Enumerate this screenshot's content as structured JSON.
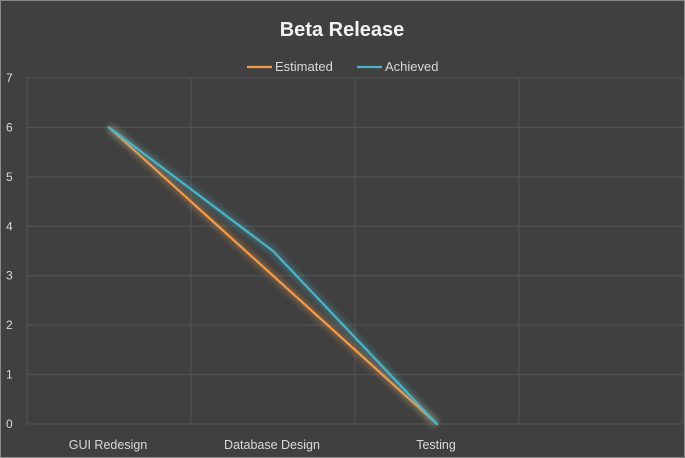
{
  "chart_data": {
    "type": "line",
    "title": "Beta Release",
    "categories": [
      "GUI Redesign",
      "Database Design",
      "Testing",
      ""
    ],
    "series": [
      {
        "name": "Estimated",
        "color": "#f39b4a",
        "values": [
          6,
          3,
          0,
          null
        ]
      },
      {
        "name": "Achieved",
        "color": "#4ab3c8",
        "values": [
          6,
          3.5,
          0,
          null
        ]
      }
    ],
    "ylim": [
      0,
      7
    ],
    "yticks": [
      0,
      1,
      2,
      3,
      4,
      5,
      6,
      7
    ],
    "xlabel": "",
    "ylabel": "",
    "legend": "top",
    "grid": true
  }
}
